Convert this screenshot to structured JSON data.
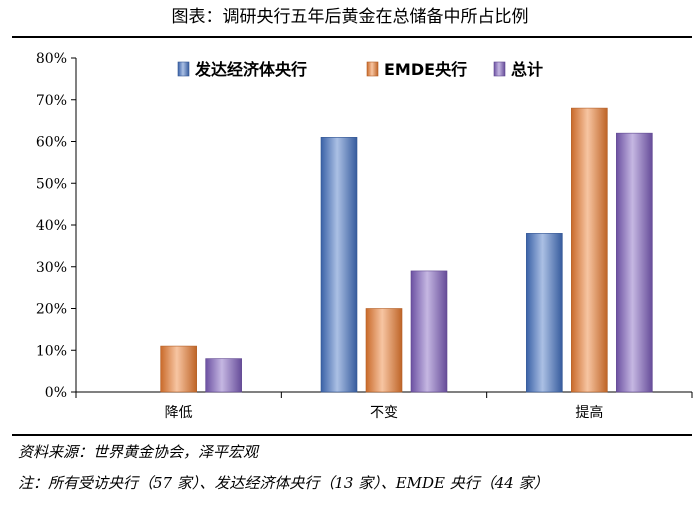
{
  "title": "图表：调研央行五年后黄金在总储备中所占比例",
  "source": "资料来源：世界黄金协会，泽平宏观",
  "note": "注：所有受访央行（57 家）、发达经济体央行（13 家）、EMDE 央行（44 家）",
  "chart_data": {
    "type": "bar",
    "categories": [
      "降低",
      "不变",
      "提高"
    ],
    "ylim": [
      0,
      80
    ],
    "yticks": [
      "0%",
      "10%",
      "20%",
      "30%",
      "40%",
      "50%",
      "60%",
      "70%",
      "80%"
    ],
    "legend_position": "top-right",
    "grid": false,
    "series": [
      {
        "name": "发达经济体央行",
        "values": [
          0,
          61,
          38
        ],
        "color": "#4472c4"
      },
      {
        "name": "EMDE央行",
        "values": [
          11,
          20,
          68
        ],
        "color": "#ed7d31"
      },
      {
        "name": "总计",
        "values": [
          8,
          29,
          62
        ],
        "color": "#7f5fbf"
      }
    ]
  }
}
